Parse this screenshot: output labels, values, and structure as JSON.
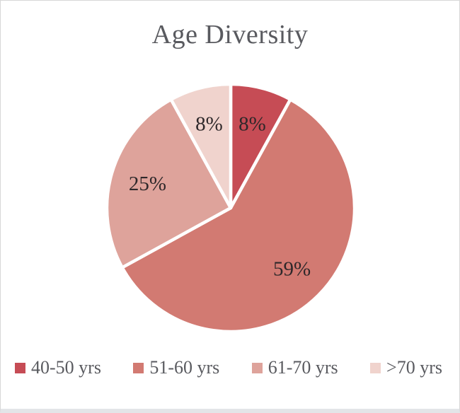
{
  "window": {
    "background": "#ffffff",
    "border_color": "#d7d7d7",
    "bottom_edge_color": "#e3e5e8"
  },
  "chart_data": {
    "type": "pie",
    "title": "Age Diversity",
    "categories": [
      "40-50 yrs",
      "51-60 yrs",
      "61-70 yrs",
      ">70 yrs"
    ],
    "values": [
      8,
      59,
      25,
      8
    ],
    "data_labels": [
      "8%",
      "59%",
      "25%",
      "8%"
    ],
    "colors": [
      "#c64c55",
      "#d27a72",
      "#dea39b",
      "#f0d3cd"
    ],
    "slice_border_color": "#ffffff",
    "start_angle_deg": 0,
    "direction": "clockwise",
    "legend_position": "bottom",
    "title_color": "#595a5f",
    "legend_text_color": "#595a5f",
    "label_color": "#2e282a"
  }
}
